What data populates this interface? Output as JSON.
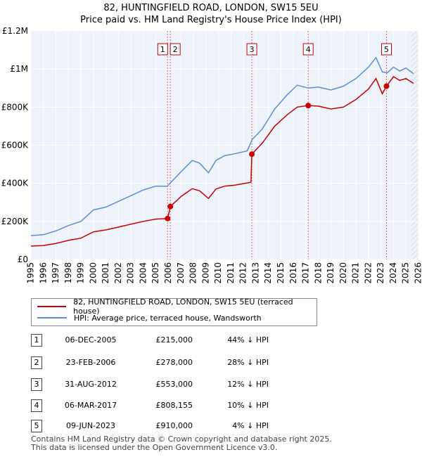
{
  "chart_data": {
    "type": "line",
    "title": "82, HUNTINGFIELD ROAD, LONDON, SW15 5EU",
    "subtitle": "Price paid vs. HM Land Registry's House Price Index (HPI)",
    "xlim": [
      1995,
      2026
    ],
    "ylim": [
      0,
      1200000
    ],
    "y_ticks": [
      {
        "value": 0,
        "label": "£0"
      },
      {
        "value": 200000,
        "label": "£200K"
      },
      {
        "value": 400000,
        "label": "£400K"
      },
      {
        "value": 600000,
        "label": "£600K"
      },
      {
        "value": 800000,
        "label": "£800K"
      },
      {
        "value": 1000000,
        "label": "£1M"
      },
      {
        "value": 1200000,
        "label": "£1.2M"
      }
    ],
    "x_ticks": [
      "1995",
      "1996",
      "1997",
      "1998",
      "1999",
      "2000",
      "2001",
      "2002",
      "2003",
      "2004",
      "2005",
      "2006",
      "2007",
      "2008",
      "2009",
      "2010",
      "2011",
      "2012",
      "2013",
      "2014",
      "2015",
      "2016",
      "2017",
      "2018",
      "2019",
      "2020",
      "2021",
      "2022",
      "2023",
      "2024",
      "2025",
      "2026"
    ],
    "future_start": 2025.4,
    "series": [
      {
        "name": "HPI: Average price, terraced house, Wandsworth",
        "color": "#5b8fd0",
        "points": [
          [
            1995,
            125000
          ],
          [
            1996,
            130000
          ],
          [
            1997,
            150000
          ],
          [
            1998,
            178000
          ],
          [
            1999,
            200000
          ],
          [
            2000,
            260000
          ],
          [
            2001,
            275000
          ],
          [
            2002,
            305000
          ],
          [
            2003,
            335000
          ],
          [
            2004,
            365000
          ],
          [
            2005,
            385000
          ],
          [
            2005.9,
            384000
          ],
          [
            2006.2,
            405000
          ],
          [
            2007,
            460000
          ],
          [
            2007.9,
            520000
          ],
          [
            2008.5,
            505000
          ],
          [
            2009.2,
            455000
          ],
          [
            2009.8,
            520000
          ],
          [
            2010.5,
            545000
          ],
          [
            2011.3,
            555000
          ],
          [
            2012.3,
            570000
          ],
          [
            2012.7,
            630000
          ],
          [
            2013.5,
            685000
          ],
          [
            2014.5,
            790000
          ],
          [
            2015.5,
            865000
          ],
          [
            2016.3,
            915000
          ],
          [
            2017.2,
            900000
          ],
          [
            2018,
            905000
          ],
          [
            2019,
            890000
          ],
          [
            2020,
            910000
          ],
          [
            2021,
            950000
          ],
          [
            2022,
            1010000
          ],
          [
            2022.6,
            1060000
          ],
          [
            2023.1,
            985000
          ],
          [
            2023.5,
            980000
          ],
          [
            2024,
            1010000
          ],
          [
            2024.5,
            990000
          ],
          [
            2025,
            1005000
          ],
          [
            2025.6,
            975000
          ]
        ]
      },
      {
        "name": "82, HUNTINGFIELD ROAD, LONDON, SW15 5EU (terraced house)",
        "color": "#cc0000",
        "points": [
          [
            1995,
            70000
          ],
          [
            1996,
            73000
          ],
          [
            1997,
            84000
          ],
          [
            1998,
            100000
          ],
          [
            1999,
            112000
          ],
          [
            2000,
            145000
          ],
          [
            2001,
            155000
          ],
          [
            2002,
            170000
          ],
          [
            2003,
            185000
          ],
          [
            2004,
            200000
          ],
          [
            2005,
            212000
          ],
          [
            2005.93,
            215000
          ],
          [
            2005.93,
            213000
          ],
          [
            2006.15,
            278000
          ],
          [
            2007,
            330000
          ],
          [
            2007.9,
            372000
          ],
          [
            2008.5,
            360000
          ],
          [
            2009.2,
            320000
          ],
          [
            2009.8,
            370000
          ],
          [
            2010.5,
            385000
          ],
          [
            2011.3,
            390000
          ],
          [
            2012.6,
            405000
          ],
          [
            2012.67,
            553000
          ],
          [
            2013.5,
            610000
          ],
          [
            2014.5,
            700000
          ],
          [
            2015.5,
            760000
          ],
          [
            2016.3,
            800000
          ],
          [
            2017.18,
            808155
          ],
          [
            2018,
            805000
          ],
          [
            2019,
            790000
          ],
          [
            2020,
            800000
          ],
          [
            2021,
            840000
          ],
          [
            2022,
            895000
          ],
          [
            2022.6,
            950000
          ],
          [
            2023.1,
            870000
          ],
          [
            2023.44,
            910000
          ],
          [
            2024,
            960000
          ],
          [
            2024.5,
            940000
          ],
          [
            2025,
            950000
          ],
          [
            2025.6,
            925000
          ]
        ]
      }
    ],
    "sales": [
      {
        "id": "1",
        "x": 2005.93,
        "y": 215000
      },
      {
        "id": "2",
        "x": 2006.15,
        "y": 278000
      },
      {
        "id": "3",
        "x": 2012.67,
        "y": 553000
      },
      {
        "id": "4",
        "x": 2017.18,
        "y": 808155
      },
      {
        "id": "5",
        "x": 2023.44,
        "y": 910000
      }
    ]
  },
  "legend": {
    "property": "82, HUNTINGFIELD ROAD, LONDON, SW15 5EU (terraced house)",
    "hpi": "HPI: Average price, terraced house, Wandsworth"
  },
  "transactions": [
    {
      "num": "1",
      "date": "06-DEC-2005",
      "price": "£215,000",
      "hpi": "44% ↓ HPI"
    },
    {
      "num": "2",
      "date": "23-FEB-2006",
      "price": "£278,000",
      "hpi": "28% ↓ HPI"
    },
    {
      "num": "3",
      "date": "31-AUG-2012",
      "price": "£553,000",
      "hpi": "12% ↓ HPI"
    },
    {
      "num": "4",
      "date": "06-MAR-2017",
      "price": "£808,155",
      "hpi": "10% ↓ HPI"
    },
    {
      "num": "5",
      "date": "09-JUN-2023",
      "price": "£910,000",
      "hpi": "4% ↓ HPI"
    }
  ],
  "footer": {
    "line1": "Contains HM Land Registry data © Crown copyright and database right 2025.",
    "line2": "This data is licensed under the Open Government Licence v3.0."
  }
}
